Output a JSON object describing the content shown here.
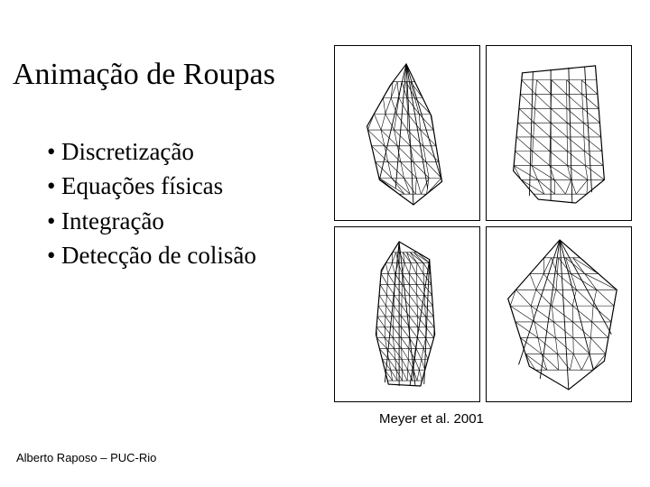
{
  "title": "Animação de Roupas",
  "bullets": {
    "items": [
      "Discretização",
      "Equações físicas",
      "Integração",
      "Detecção de colisão"
    ],
    "marker": "•",
    "fontsize": 27
  },
  "title_fontsize": 34,
  "caption": "Meyer et al. 2001",
  "caption_fontsize": 15,
  "footer": "Alberto Raposo – PUC-Rio",
  "footer_fontsize": 13,
  "colors": {
    "background": "#ffffff",
    "text": "#000000",
    "panel_border": "#000000",
    "mesh_stroke": "#000000"
  },
  "figure": {
    "type": "infographic",
    "layout": "2x2",
    "panel_border_width": 1,
    "mesh_stroke_width": 0.6,
    "panels": [
      {
        "description": "draped-cloth-mesh-narrow",
        "outline": [
          [
            80,
            20
          ],
          [
            108,
            78
          ],
          [
            120,
            152
          ],
          [
            88,
            178
          ],
          [
            50,
            150
          ],
          [
            36,
            90
          ],
          [
            62,
            44
          ]
        ],
        "vlines": [
          [
            [
              80,
              20
            ],
            [
              50,
              150
            ]
          ],
          [
            [
              80,
              20
            ],
            [
              68,
              160
            ]
          ],
          [
            [
              80,
              20
            ],
            [
              88,
              178
            ]
          ],
          [
            [
              80,
              20
            ],
            [
              104,
              160
            ]
          ],
          [
            [
              80,
              20
            ],
            [
              120,
              152
            ]
          ]
        ],
        "hlines_y": [
          40,
          58,
          76,
          94,
          112,
          130,
          148,
          166
        ]
      },
      {
        "description": "curved-cloth-mesh",
        "outline": [
          [
            40,
            30
          ],
          [
            122,
            22
          ],
          [
            132,
            150
          ],
          [
            100,
            176
          ],
          [
            58,
            172
          ],
          [
            30,
            140
          ]
        ],
        "vlines": [
          [
            [
              52,
              28
            ],
            [
              48,
              168
            ]
          ],
          [
            [
              72,
              26
            ],
            [
              72,
              174
            ]
          ],
          [
            [
              92,
              24
            ],
            [
              96,
              176
            ]
          ],
          [
            [
              110,
              23
            ],
            [
              118,
              164
            ]
          ]
        ],
        "hlines_y": [
          38,
          54,
          70,
          86,
          102,
          118,
          134,
          150,
          166
        ]
      },
      {
        "description": "twisted-cloth-mesh-dense",
        "outline": [
          [
            72,
            16
          ],
          [
            106,
            36
          ],
          [
            112,
            120
          ],
          [
            96,
            178
          ],
          [
            60,
            176
          ],
          [
            46,
            120
          ],
          [
            52,
            48
          ]
        ],
        "vlines": [
          [
            [
              72,
              16
            ],
            [
              56,
              174
            ]
          ],
          [
            [
              72,
              16
            ],
            [
              72,
              178
            ]
          ],
          [
            [
              72,
              16
            ],
            [
              90,
              177
            ]
          ],
          [
            [
              106,
              36
            ],
            [
              100,
              176
            ]
          ],
          [
            [
              106,
              36
            ],
            [
              84,
              178
            ]
          ]
        ],
        "hlines_y": [
          28,
          40,
          52,
          64,
          76,
          88,
          100,
          112,
          124,
          136,
          148,
          160,
          172
        ],
        "dense": true
      },
      {
        "description": "hanging-cloth-mesh-wide",
        "outline": [
          [
            82,
            14
          ],
          [
            146,
            70
          ],
          [
            132,
            150
          ],
          [
            92,
            182
          ],
          [
            48,
            156
          ],
          [
            24,
            80
          ]
        ],
        "vlines": [
          [
            [
              82,
              14
            ],
            [
              36,
              154
            ]
          ],
          [
            [
              82,
              14
            ],
            [
              60,
              170
            ]
          ],
          [
            [
              82,
              14
            ],
            [
              92,
              182
            ]
          ],
          [
            [
              82,
              14
            ],
            [
              120,
              160
            ]
          ],
          [
            [
              82,
              14
            ],
            [
              140,
              120
            ]
          ]
        ],
        "hlines_y": [
          34,
          52,
          70,
          88,
          106,
          124,
          142,
          160
        ]
      }
    ]
  }
}
